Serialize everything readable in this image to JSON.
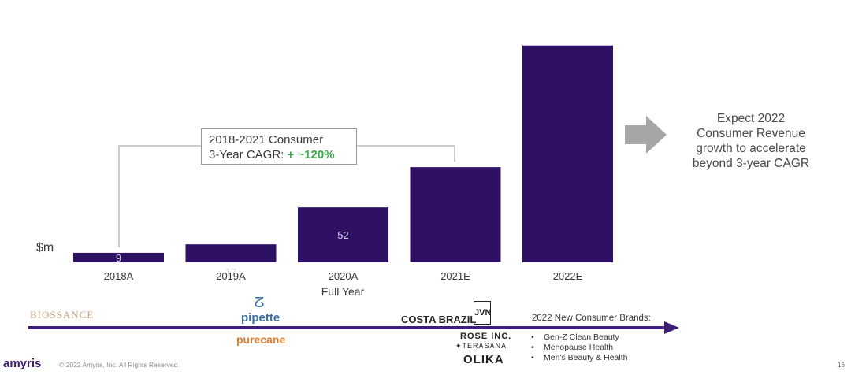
{
  "unit_label": "$m",
  "axis_caption": "Full Year",
  "cagr": {
    "line1": "2018-2021 Consumer",
    "line2_prefix": "3-Year CAGR: ",
    "line2_value": "+ ~120%"
  },
  "expect_text": [
    "Expect 2022",
    "Consumer Revenue",
    "growth to accelerate",
    "beyond 3-year CAGR"
  ],
  "brands_existing": {
    "biossance": "BIOSSANCE",
    "pipette_icon": "ⵒ",
    "pipette": "pipette",
    "purecane": "purecane",
    "costa_brazil": "COSTA BRAZIL",
    "jvn": "JVN"
  },
  "brands_new": {
    "rose_inc": "ROSE INC.",
    "terasana": "TERASANA",
    "olika": "OLIKA"
  },
  "new_brands_title": "2022 New Consumer Brands:",
  "new_brands_items": [
    "Gen-Z Clean Beauty",
    "Menopause Health",
    "Men's Beauty & Health"
  ],
  "footer": {
    "logo": "amyris",
    "copyright": "© 2022 Amyris, Inc. All Rights Reserved.",
    "page": "16"
  },
  "colors": {
    "bar": "#2e1065",
    "arrow_gray": "#a6a6a6",
    "timeline": "#3f1e78",
    "cagr_green": "#3aa84a"
  },
  "chart_data": {
    "type": "bar",
    "categories": [
      "2018A",
      "2019A",
      "2020A",
      "2021E",
      "2022E"
    ],
    "values": [
      9,
      17,
      52,
      90,
      205
    ],
    "value_labels": [
      "9",
      "17",
      "52",
      "",
      ""
    ],
    "ylabel": "$m",
    "xlabel": "Full Year",
    "ylim": [
      0,
      210
    ],
    "grid": false,
    "legend": "none"
  }
}
